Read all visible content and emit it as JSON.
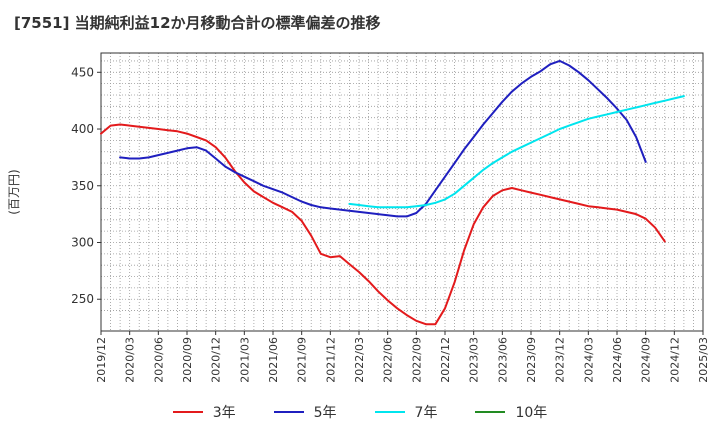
{
  "chart_data": {
    "type": "line",
    "title": "[7551]  当期純利益12か月移動合計の標準偏差の推移",
    "ylabel": "(百万円)",
    "xlabel": "",
    "ylim": [
      222,
      467
    ],
    "yticks": [
      250,
      300,
      350,
      400,
      450
    ],
    "x_start": "2019-12",
    "x_end": "2025-03",
    "xtick_labels": [
      "2019/12",
      "2020/03",
      "2020/06",
      "2020/09",
      "2020/12",
      "2021/03",
      "2021/06",
      "2021/09",
      "2021/12",
      "2022/03",
      "2022/06",
      "2022/09",
      "2022/12",
      "2023/03",
      "2023/06",
      "2023/09",
      "2023/12",
      "2024/03",
      "2024/06",
      "2024/09",
      "2024/12",
      "2025/03"
    ],
    "grid": true,
    "legend_position": "bottom",
    "series": [
      {
        "name": "3年",
        "color": "#e31a1c",
        "start": "2019-12",
        "values": [
          396,
          403,
          404,
          403,
          402,
          401,
          400,
          399,
          398,
          396,
          393,
          390,
          384,
          375,
          363,
          353,
          345,
          340,
          335,
          331,
          327,
          319,
          306,
          290,
          287,
          288,
          281,
          274,
          266,
          257,
          249,
          242,
          236,
          231,
          228,
          228,
          242,
          265,
          293,
          316,
          331,
          341,
          346,
          348,
          346,
          344,
          342,
          340,
          338,
          336,
          334,
          332,
          331,
          330,
          329,
          327,
          325,
          321,
          313,
          301
        ]
      },
      {
        "name": "5年",
        "color": "#1f1fbf",
        "start": "2020-02",
        "values": [
          375,
          374,
          374,
          375,
          377,
          379,
          381,
          383,
          384,
          381,
          374,
          367,
          362,
          358,
          354,
          350,
          347,
          344,
          340,
          336,
          333,
          331,
          330,
          329,
          328,
          327,
          326,
          325,
          324,
          323,
          323,
          326,
          334,
          346,
          358,
          370,
          382,
          393,
          404,
          414,
          424,
          433,
          440,
          446,
          451,
          457,
          460,
          456,
          450,
          443,
          435,
          427,
          418,
          408,
          393,
          371
        ]
      },
      {
        "name": "7年",
        "color": "#00e5ee",
        "start": "2022-02",
        "values": [
          334,
          333,
          332,
          331,
          331,
          331,
          331,
          332,
          333,
          335,
          338,
          343,
          350,
          357,
          364,
          370,
          375,
          380,
          384,
          388,
          392,
          396,
          400,
          403,
          406,
          409,
          411,
          413,
          415,
          417,
          419,
          421,
          423,
          425,
          427,
          429
        ]
      },
      {
        "name": "10年",
        "color": "#228b22",
        "start": "2019-12",
        "values": []
      }
    ]
  }
}
